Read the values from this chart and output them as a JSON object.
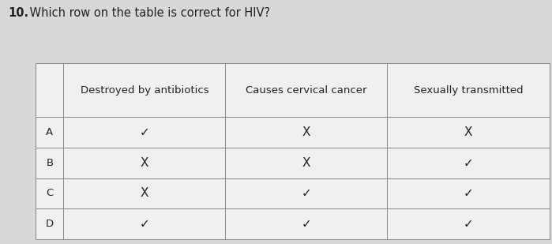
{
  "title_num": "10.",
  "title_text": " Which row on the table is correct for HIV?",
  "col_headers": [
    "Destroyed by antibiotics",
    "Causes cervical cancer",
    "Sexually transmitted"
  ],
  "row_labels": [
    "A",
    "B",
    "C",
    "D"
  ],
  "cells": [
    [
      "✓",
      "X",
      "X"
    ],
    [
      "X",
      "X",
      "✓"
    ],
    [
      "X",
      "✓",
      "✓"
    ],
    [
      "✓",
      "✓",
      "✓"
    ]
  ],
  "bg_color": "#d8d8d8",
  "cell_bg": "#f0f0f0",
  "header_bg": "#f0f0f0",
  "row_label_bg": "#f0f0f0",
  "text_color": "#222222",
  "border_color": "#888888",
  "title_fontsize": 10.5,
  "header_fontsize": 9.5,
  "cell_fontsize": 11,
  "row_label_fontsize": 9.5
}
